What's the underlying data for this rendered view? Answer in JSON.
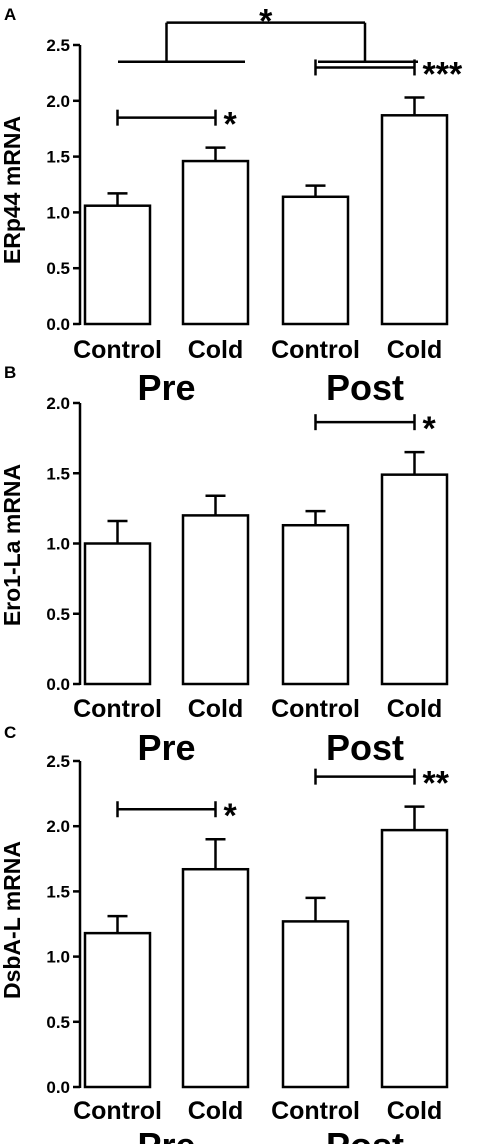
{
  "chart_data": [
    {
      "panel": "A",
      "type": "bar",
      "ylabel": "ERp44 mRNA",
      "ylim": [
        0,
        2.5
      ],
      "yticks": [
        "0.0",
        "0.5",
        "1.0",
        "1.5",
        "2.0",
        "2.5"
      ],
      "categories": [
        "Control",
        "Cold",
        "Control",
        "Cold"
      ],
      "groups": [
        "Pre",
        "Post"
      ],
      "values": [
        1.06,
        1.46,
        1.14,
        1.87
      ],
      "errors": [
        0.11,
        0.12,
        0.1,
        0.16
      ],
      "significance": [
        {
          "between": [
            0,
            1
          ],
          "label": "*"
        },
        {
          "between": [
            2,
            3
          ],
          "label": "***"
        },
        {
          "between_groups": [
            "Pre",
            "Post"
          ],
          "label": "*"
        }
      ]
    },
    {
      "panel": "B",
      "type": "bar",
      "ylabel": "Ero1-La mRNA",
      "ylim": [
        0,
        2.0
      ],
      "yticks": [
        "0.0",
        "0.5",
        "1.0",
        "1.5",
        "2.0"
      ],
      "categories": [
        "Control",
        "Cold",
        "Control",
        "Cold"
      ],
      "groups": [
        "Pre",
        "Post"
      ],
      "values": [
        1.0,
        1.2,
        1.13,
        1.49
      ],
      "errors": [
        0.16,
        0.14,
        0.1,
        0.16
      ],
      "significance": [
        {
          "between": [
            2,
            3
          ],
          "label": "*"
        }
      ]
    },
    {
      "panel": "C",
      "type": "bar",
      "ylabel": "DsbA-L mRNA",
      "ylim": [
        0,
        2.5
      ],
      "yticks": [
        "0.0",
        "0.5",
        "1.0",
        "1.5",
        "2.0",
        "2.5"
      ],
      "categories": [
        "Control",
        "Cold",
        "Control",
        "Cold"
      ],
      "groups": [
        "Pre",
        "Post"
      ],
      "values": [
        1.18,
        1.67,
        1.27,
        1.97
      ],
      "errors": [
        0.13,
        0.23,
        0.18,
        0.18
      ],
      "significance": [
        {
          "between": [
            0,
            1
          ],
          "label": "*"
        },
        {
          "between": [
            2,
            3
          ],
          "label": "**"
        }
      ]
    }
  ]
}
